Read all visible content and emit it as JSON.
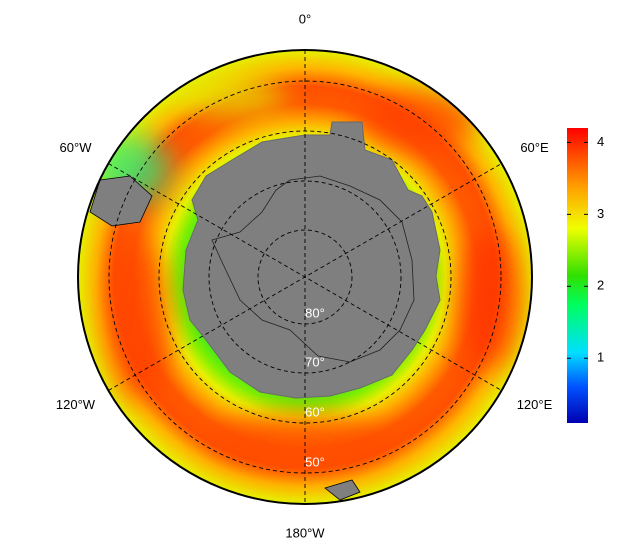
{
  "map": {
    "longitude_labels": [
      "0°",
      "60°E",
      "120°E",
      "180°W",
      "120°W",
      "60°W"
    ],
    "latitude_labels": [
      "80°",
      "70°",
      "60°",
      "50°"
    ],
    "colorbar": {
      "range": [
        0.1,
        4.2
      ],
      "ticks": [
        1,
        2,
        3,
        4
      ]
    }
  }
}
